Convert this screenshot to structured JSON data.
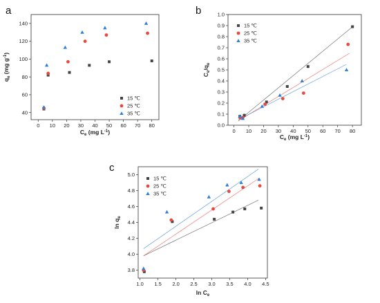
{
  "chart_data": [
    {
      "id": "a",
      "type": "scatter",
      "panel_label": "a",
      "xlabel": "C",
      "xlabel_sub": "e",
      "xlabel_unit": "(mg L",
      "xlabel_sup": "-1",
      "xlabel_close": ")",
      "ylabel": "q",
      "ylabel_sub": "e",
      "ylabel_unit": "(mg g",
      "ylabel_sup": "-1",
      "ylabel_close": ")",
      "xlim": [
        -5,
        85
      ],
      "ylim": [
        32,
        150
      ],
      "xticks": [
        0,
        10,
        20,
        30,
        40,
        50,
        60,
        70,
        80
      ],
      "yticks": [
        40,
        60,
        80,
        100,
        120,
        140
      ],
      "legend_position": "lower-right",
      "series": [
        {
          "name": "15 ℃",
          "marker": "square",
          "color": "#444444",
          "x": [
            4,
            7,
            22,
            36,
            50,
            80
          ],
          "y": [
            44,
            82,
            85,
            93,
            97,
            98
          ]
        },
        {
          "name": "25 ℃",
          "marker": "circle",
          "color": "#e8483f",
          "x": [
            4,
            7,
            21,
            33,
            48,
            77
          ],
          "y": [
            45,
            84,
            97,
            120,
            127,
            129
          ]
        },
        {
          "name": "35 ℃",
          "marker": "triangle",
          "color": "#2f7fd8",
          "x": [
            4,
            6,
            19,
            31,
            47,
            76
          ],
          "y": [
            46,
            93,
            113,
            130,
            135,
            140
          ]
        }
      ]
    },
    {
      "id": "b",
      "type": "scatter",
      "panel_label": "b",
      "xlabel": "C",
      "xlabel_sub": "e",
      "xlabel_unit": "(mg L",
      "xlabel_sup": "-1",
      "xlabel_close": ")",
      "ylabel": "C",
      "ylabel_sub": "e",
      "ylabel_mid": "/q",
      "ylabel_sub2": "e",
      "xlim": [
        -4,
        86
      ],
      "ylim": [
        0,
        1.0
      ],
      "xticks": [
        0,
        10,
        20,
        30,
        40,
        50,
        60,
        70,
        80
      ],
      "yticks": [
        0.0,
        0.1,
        0.2,
        0.3,
        0.4,
        0.5,
        0.6,
        0.7,
        0.8,
        0.9,
        1.0
      ],
      "legend_position": "top-left",
      "series": [
        {
          "name": "15 ℃",
          "marker": "square",
          "color": "#444444",
          "x": [
            4,
            7,
            22,
            36,
            50,
            80
          ],
          "y": [
            0.08,
            0.09,
            0.21,
            0.35,
            0.53,
            0.89
          ],
          "fit": [
            [
              3,
              0.04
            ],
            [
              81,
              0.9
            ]
          ]
        },
        {
          "name": "25 ℃",
          "marker": "circle",
          "color": "#e8483f",
          "x": [
            4,
            6,
            21,
            33,
            47,
            77
          ],
          "y": [
            0.07,
            0.07,
            0.19,
            0.24,
            0.29,
            0.73
          ],
          "fit": [
            [
              3,
              0.04
            ],
            [
              78,
              0.65
            ]
          ]
        },
        {
          "name": "35 ℃",
          "marker": "triangle",
          "color": "#2f7fd8",
          "x": [
            4,
            6,
            19,
            31,
            46,
            76
          ],
          "y": [
            0.08,
            0.06,
            0.17,
            0.27,
            0.4,
            0.5
          ],
          "fit": [
            [
              3,
              0.05
            ],
            [
              76,
              0.55
            ]
          ]
        }
      ]
    },
    {
      "id": "c",
      "type": "scatter",
      "panel_label": "c",
      "xlabel": "ln C",
      "xlabel_sub": "e",
      "ylabel": "ln q",
      "ylabel_sub": "e",
      "xlim": [
        0.95,
        4.55
      ],
      "ylim": [
        3.7,
        5.1
      ],
      "xticks": [
        1.0,
        1.5,
        2.0,
        2.5,
        3.0,
        3.5,
        4.0,
        4.5
      ],
      "yticks": [
        3.8,
        4.0,
        4.2,
        4.4,
        4.6,
        4.8,
        5.0
      ],
      "legend_position": "top-left",
      "series": [
        {
          "name": "15 ℃",
          "marker": "square",
          "color": "#444444",
          "x": [
            1.12,
            1.9,
            3.07,
            3.59,
            3.92,
            4.38
          ],
          "y": [
            3.78,
            4.41,
            4.44,
            4.53,
            4.57,
            4.58
          ],
          "fit": [
            [
              1.1,
              3.98
            ],
            [
              4.3,
              4.68
            ]
          ]
        },
        {
          "name": "25 ℃",
          "marker": "circle",
          "color": "#e8483f",
          "x": [
            1.1,
            1.87,
            3.04,
            3.48,
            3.87,
            4.34
          ],
          "y": [
            3.8,
            4.43,
            4.57,
            4.79,
            4.84,
            4.86
          ],
          "fit": [
            [
              1.1,
              3.98
            ],
            [
              4.3,
              4.95
            ]
          ]
        },
        {
          "name": "35 ℃",
          "marker": "triangle",
          "color": "#2f7fd8",
          "x": [
            1.1,
            1.75,
            2.92,
            3.43,
            3.82,
            4.32
          ],
          "y": [
            3.82,
            4.53,
            4.72,
            4.87,
            4.9,
            4.94
          ],
          "fit": [
            [
              1.1,
              4.07
            ],
            [
              4.3,
              5.07
            ]
          ]
        }
      ]
    }
  ]
}
